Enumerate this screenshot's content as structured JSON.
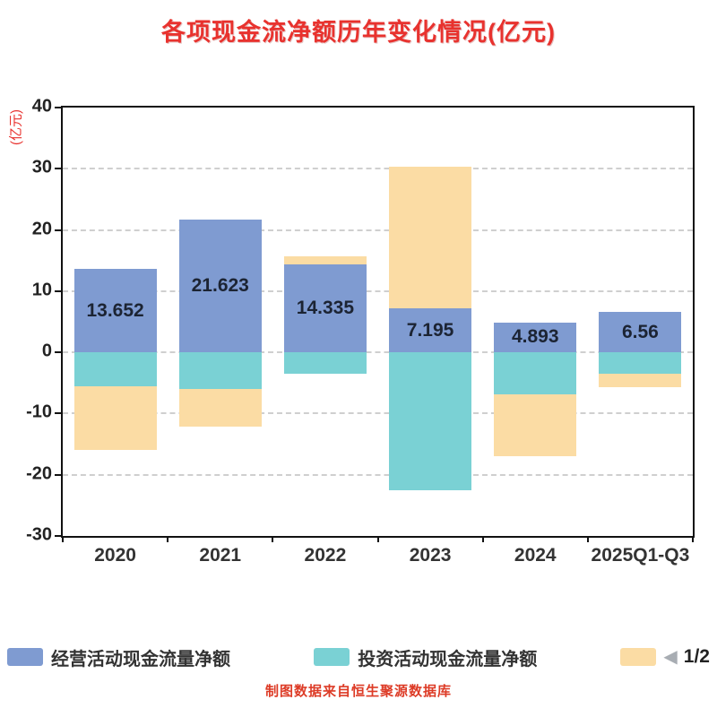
{
  "title": "各项现金流净额历年变化情况(亿元)",
  "y_axis_label": "(亿元)",
  "footer": "制图数据来自恒生聚源数据库",
  "pagination": {
    "arrow": "◀",
    "label": "1/2"
  },
  "colors": {
    "operating": "#7F9BD1",
    "investing": "#7AD1D4",
    "financing": "#FBDCA4",
    "title_red": "#e8322e"
  },
  "legend": [
    {
      "name": "经营活动现金流量净额",
      "color": "#7F9BD1"
    },
    {
      "name": "投资活动现金流量净额",
      "color": "#7AD1D4"
    },
    {
      "name": "",
      "color": "#FBDCA4"
    }
  ],
  "chart_data": {
    "type": "bar",
    "stacked": true,
    "title": "各项现金流净额历年变化情况(亿元)",
    "ylabel": "(亿元)",
    "categories": [
      "2020",
      "2021",
      "2022",
      "2023",
      "2024",
      "2025Q1-Q3"
    ],
    "series": [
      {
        "name": "经营活动现金流量净额",
        "color": "#7F9BD1",
        "values": [
          13.652,
          21.623,
          14.335,
          7.195,
          4.893,
          6.56
        ]
      },
      {
        "name": "投资活动现金流量净额",
        "color": "#7AD1D4",
        "values": [
          -5.5,
          -6.0,
          -3.5,
          -22.5,
          -6.8,
          -3.5
        ]
      },
      {
        "name": "",
        "color": "#FBDCA4",
        "values": [
          -10.5,
          -6.2,
          1.4,
          23.1,
          -10.2,
          -2.2
        ]
      }
    ],
    "labels": [
      "13.652",
      "21.623",
      "14.335",
      "7.195",
      "4.893",
      "6.56"
    ],
    "ylim": [
      -30,
      40
    ],
    "yticks": [
      40,
      30,
      20,
      10,
      0,
      -10,
      -20,
      -30
    ],
    "grid": "dashed horizontal",
    "legend_position": "bottom"
  }
}
